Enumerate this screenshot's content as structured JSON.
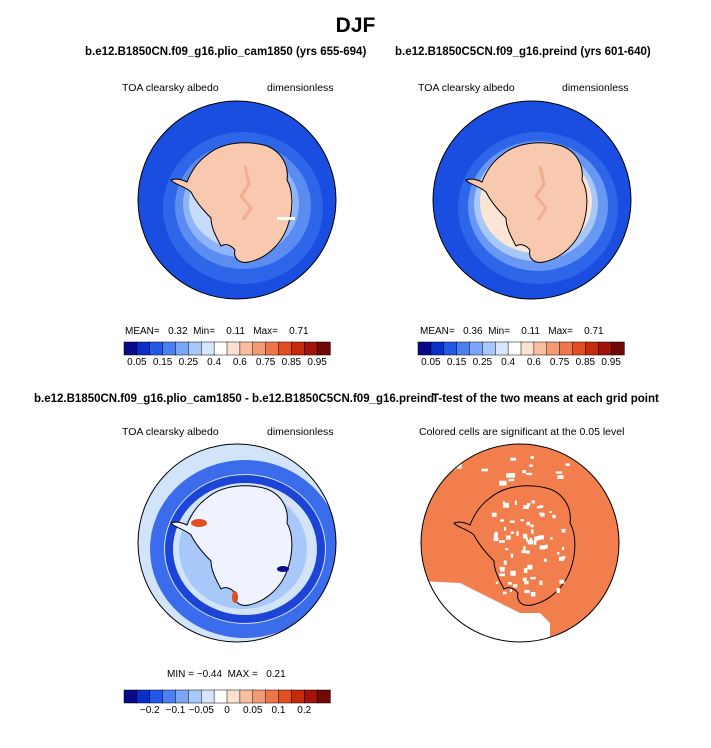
{
  "figure": {
    "season": "DJF"
  },
  "colors": {
    "scale": [
      "#08088a",
      "#0a2fc8",
      "#2258e8",
      "#4a80f0",
      "#7aa6f6",
      "#a8c8fa",
      "#d6e6fc",
      "#ffffff",
      "#fce0d0",
      "#f8bea0",
      "#f49a72",
      "#ef764a",
      "#e24e22",
      "#c62a0c",
      "#a0140a",
      "#700808"
    ],
    "ocean_dark": "#1a4ee0",
    "ice_albedo": "#f8c9ae",
    "sig_fill": "#f27e4e",
    "diff_neutral": "#d2e4fa"
  },
  "panels": {
    "p1": {
      "title": "b.e12.B1850CN.f09_g16.plio_cam1850 (yrs 655-694)",
      "left": "TOA clearsky albedo",
      "right": "dimensionless",
      "mean_label": "MEAN=",
      "mean": "0.32",
      "min_label": "Min=",
      "min": "0.11",
      "max_label": "Max=",
      "max": "0.71"
    },
    "p2": {
      "title": "b.e12.B1850C5CN.f09_g16.preind (yrs 601-640)",
      "left": "TOA clearsky albedo",
      "right": "dimensionless",
      "mean_label": "MEAN=",
      "mean": "0.36",
      "min_label": "Min=",
      "min": "0.11",
      "max_label": "Max=",
      "max": "0.71"
    },
    "p3": {
      "title": "b.e12.B1850CN.f09_g16.plio_cam1850 - b.e12.B1850C5CN.f09_g16.preind",
      "left": "TOA clearsky albedo",
      "right": "dimensionless",
      "stats": "MIN = −0.44  MAX =   0.21"
    },
    "p4": {
      "title": "T-test of the two means at each grid point",
      "subtitle": "Colored cells are significant at the 0.05 level"
    }
  },
  "chart_data": [
    {
      "type": "heatmap",
      "title": "b.e12.B1850CN.f09_g16.plio_cam1850 (yrs 655-694)",
      "variable": "TOA clearsky albedo",
      "units": "dimensionless",
      "projection": "south polar stereographic",
      "stats": {
        "mean": 0.32,
        "min": 0.11,
        "max": 0.71
      },
      "colorbar_ticks": [
        "0.05",
        "0.15",
        "0.25",
        "0.4",
        "0.6",
        "0.75",
        "0.85",
        "0.95"
      ]
    },
    {
      "type": "heatmap",
      "title": "b.e12.B1850C5CN.f09_g16.preind (yrs 601-640)",
      "variable": "TOA clearsky albedo",
      "units": "dimensionless",
      "projection": "south polar stereographic",
      "stats": {
        "mean": 0.36,
        "min": 0.11,
        "max": 0.71
      },
      "colorbar_ticks": [
        "0.05",
        "0.15",
        "0.25",
        "0.4",
        "0.6",
        "0.75",
        "0.85",
        "0.95"
      ]
    },
    {
      "type": "heatmap",
      "title": "b.e12.B1850CN.f09_g16.plio_cam1850 - b.e12.B1850C5CN.f09_g16.preind",
      "variable": "TOA clearsky albedo",
      "units": "dimensionless",
      "projection": "south polar stereographic",
      "stats": {
        "min": -0.44,
        "max": 0.21
      },
      "colorbar_ticks": [
        "−0.2",
        "−0.1",
        "−0.05",
        "0",
        "0.05",
        "0.1",
        "0.2"
      ]
    },
    {
      "type": "heatmap",
      "title": "T-test of the two means at each grid point",
      "subtitle": "Colored cells are significant at the 0.05 level",
      "projection": "south polar stereographic"
    }
  ]
}
